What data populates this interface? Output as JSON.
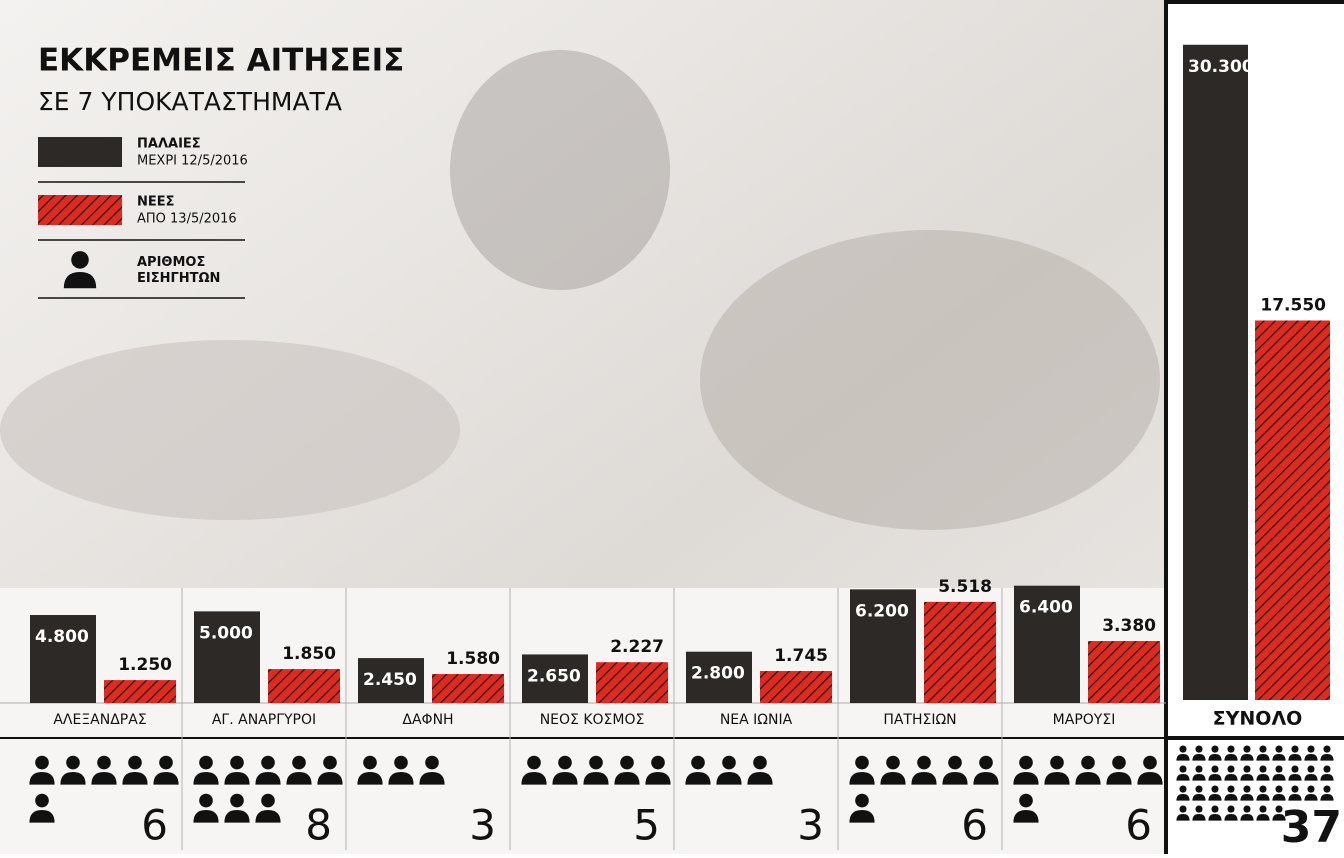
{
  "chart_data": [
    {
      "type": "bar",
      "title": "ΕΚΚΡΕΜΕΙΣ ΑΙΤΗΣΕΙΣ",
      "subtitle": "ΣΕ 7 ΥΠΟΚΑΤΑΣΤΗΜΑΤΑ",
      "categories": [
        "ΑΛΕΞΑΝΔΡΑΣ",
        "ΑΓ. ΑΝΑΡΓΥΡΟΙ",
        "ΔΑΦΝΗ",
        "ΝΕΟΣ ΚΟΣΜΟΣ",
        "ΝΕΑ ΙΩΝΙΑ",
        "ΠΑΤΗΣΙΩΝ",
        "ΜΑΡΟΥΣΙ"
      ],
      "series": [
        {
          "name": "ΠΑΛΑΙΕΣ",
          "period": "ΜΕΧΡΙ 12/5/2016",
          "color": "#2d2927",
          "values": [
            4800,
            5000,
            2450,
            2650,
            2800,
            6200,
            6400
          ],
          "value_labels": [
            "4.800",
            "5.000",
            "2.450",
            "2.650",
            "2.800",
            "6.200",
            "6.400"
          ]
        },
        {
          "name": "ΝΕΕΣ",
          "period": "ΑΠΟ 13/5/2016",
          "color": "#e02a1f",
          "hatched": true,
          "values": [
            1250,
            1850,
            1580,
            2227,
            1745,
            5518,
            3380
          ],
          "value_labels": [
            "1.250",
            "1.850",
            "1.580",
            "2.227",
            "1.745",
            "5.518",
            "3.380"
          ]
        }
      ],
      "rapporteurs": {
        "name": "ΑΡΙΘΜΟΣ ΕΙΣΗΓΗΤΩΝ",
        "values": [
          6,
          8,
          3,
          5,
          3,
          6,
          6
        ]
      },
      "ylim": [
        0,
        7000
      ]
    },
    {
      "type": "bar",
      "categories": [
        "ΣΥΝΟΛΟ"
      ],
      "series": [
        {
          "color": "#2d2927",
          "values": [
            30300
          ],
          "value_labels": [
            "30.300"
          ]
        },
        {
          "color": "#e02a1f",
          "hatched": true,
          "values": [
            17550
          ],
          "value_labels": [
            "17.550"
          ]
        }
      ],
      "rapporteurs": {
        "values": [
          37
        ]
      },
      "ylim": [
        0,
        32000
      ]
    }
  ]
}
